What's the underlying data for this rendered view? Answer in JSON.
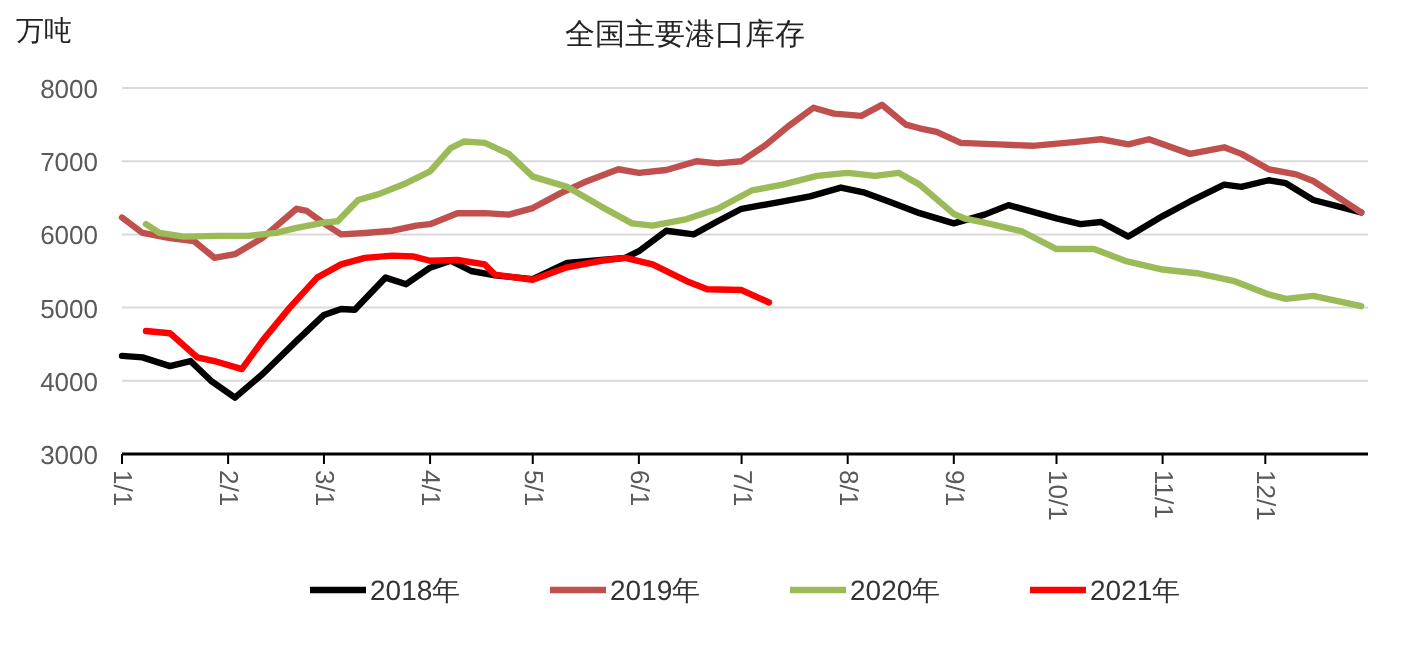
{
  "chart_data": {
    "type": "line",
    "title": "全国主要港口库存",
    "ylabel": "万吨",
    "xlim": [
      "--01-01",
      "--12-31"
    ],
    "xticks": [
      {
        "value": "--01-01",
        "label": "1/1"
      },
      {
        "value": "--02-01",
        "label": "2/1"
      },
      {
        "value": "--03-01",
        "label": "3/1"
      },
      {
        "value": "--04-01",
        "label": "4/1"
      },
      {
        "value": "--05-01",
        "label": "5/1"
      },
      {
        "value": "--06-01",
        "label": "6/1"
      },
      {
        "value": "--07-01",
        "label": "7/1"
      },
      {
        "value": "--08-01",
        "label": "8/1"
      },
      {
        "value": "--09-01",
        "label": "9/1"
      },
      {
        "value": "--10-01",
        "label": "10/1"
      },
      {
        "value": "--11-01",
        "label": "11/1"
      },
      {
        "value": "--12-01",
        "label": "12/1"
      }
    ],
    "ylim": [
      3000,
      8000
    ],
    "yticks": [
      3000,
      4000,
      5000,
      6000,
      7000,
      8000
    ],
    "grid": "y",
    "legend": "bottom",
    "marker": "none",
    "line_style": "solid",
    "series": [
      {
        "name": "2018年",
        "color": "#000000",
        "x": [
          "--01-01",
          "--01-07",
          "--01-15",
          "--01-21",
          "--01-27",
          "--02-03",
          "--02-11",
          "--02-21",
          "--03-01",
          "--03-06",
          "--03-10",
          "--03-19",
          "--03-25",
          "--04-01",
          "--04-07",
          "--04-13",
          "--04-20",
          "--05-01",
          "--05-11",
          "--05-21",
          "--05-28",
          "--06-01",
          "--06-09",
          "--06-17",
          "--06-24",
          "--07-01",
          "--07-12",
          "--07-21",
          "--07-30",
          "--08-06",
          "--08-13",
          "--08-22",
          "--09-01",
          "--09-10",
          "--09-17",
          "--10-01",
          "--10-08",
          "--10-14",
          "--10-22",
          "--11-01",
          "--11-09",
          "--11-19",
          "--11-24",
          "--12-02",
          "--12-07",
          "--12-15",
          "--12-29"
        ],
        "values": [
          4340,
          4320,
          4200,
          4270,
          4000,
          3770,
          4090,
          4545,
          4900,
          4980,
          4970,
          5410,
          5320,
          5545,
          5640,
          5500,
          5440,
          5390,
          5610,
          5650,
          5680,
          5770,
          6050,
          6000,
          6180,
          6350,
          6440,
          6520,
          6640,
          6570,
          6450,
          6290,
          6150,
          6270,
          6400,
          6220,
          6140,
          6170,
          5970,
          6250,
          6450,
          6680,
          6650,
          6740,
          6700,
          6470,
          6300
        ]
      },
      {
        "name": "2019年",
        "color": "#c0504d",
        "x": [
          "--01-01",
          "--01-07",
          "--01-15",
          "--01-22",
          "--01-28",
          "--02-03",
          "--02-11",
          "--02-21",
          "--02-24",
          "--03-01",
          "--03-06",
          "--03-13",
          "--03-21",
          "--03-28",
          "--04-01",
          "--04-09",
          "--04-17",
          "--04-24",
          "--05-01",
          "--05-09",
          "--05-17",
          "--05-26",
          "--06-01",
          "--06-09",
          "--06-18",
          "--06-24",
          "--07-01",
          "--07-08",
          "--07-15",
          "--07-22",
          "--07-28",
          "--08-05",
          "--08-11",
          "--08-18",
          "--08-22",
          "--08-27",
          "--09-03",
          "--09-14",
          "--09-24",
          "--10-06",
          "--10-14",
          "--10-22",
          "--10-28",
          "--11-09",
          "--11-19",
          "--11-24",
          "--12-02",
          "--12-10",
          "--12-15",
          "--12-29"
        ],
        "values": [
          6230,
          6020,
          5950,
          5910,
          5680,
          5730,
          5950,
          6350,
          6320,
          6150,
          6000,
          6020,
          6050,
          6120,
          6140,
          6290,
          6290,
          6270,
          6360,
          6560,
          6730,
          6890,
          6840,
          6880,
          7000,
          6970,
          7000,
          7220,
          7490,
          7730,
          7650,
          7620,
          7770,
          7500,
          7450,
          7400,
          7250,
          7230,
          7210,
          7260,
          7300,
          7230,
          7300,
          7100,
          7190,
          7100,
          6890,
          6820,
          6730,
          6300
        ]
      },
      {
        "name": "2020年",
        "color": "#9bbb59",
        "x": [
          "--01-08",
          "--01-12",
          "--01-19",
          "--01-29",
          "--02-07",
          "--02-15",
          "--02-21",
          "--03-01",
          "--03-05",
          "--03-11",
          "--03-17",
          "--03-25",
          "--04-01",
          "--04-07",
          "--04-11",
          "--04-17",
          "--04-24",
          "--05-01",
          "--05-11",
          "--05-21",
          "--05-30",
          "--06-05",
          "--06-15",
          "--06-24",
          "--07-04",
          "--07-13",
          "--07-23",
          "--08-01",
          "--08-09",
          "--08-16",
          "--08-22",
          "--09-01",
          "--09-04",
          "--09-11",
          "--09-21",
          "--10-01",
          "--10-12",
          "--10-21",
          "--11-01",
          "--11-11",
          "--11-22",
          "--12-02",
          "--12-07",
          "--12-15",
          "--12-29"
        ],
        "values": [
          6140,
          6020,
          5970,
          5980,
          5980,
          6020,
          6090,
          6160,
          6180,
          6470,
          6550,
          6700,
          6860,
          7180,
          7270,
          7250,
          7100,
          6790,
          6650,
          6380,
          6150,
          6120,
          6210,
          6350,
          6600,
          6680,
          6800,
          6840,
          6800,
          6840,
          6680,
          6280,
          6220,
          6150,
          6040,
          5800,
          5800,
          5640,
          5520,
          5470,
          5360,
          5180,
          5120,
          5160,
          5020
        ]
      },
      {
        "name": "2021年",
        "color": "#ff0000",
        "x": [
          "--01-08",
          "--01-15",
          "--01-23",
          "--01-28",
          "--02-05",
          "--02-11",
          "--02-19",
          "--02-27",
          "--03-06",
          "--03-13",
          "--03-21",
          "--03-27",
          "--04-01",
          "--04-09",
          "--04-17",
          "--04-20",
          "--05-01",
          "--05-11",
          "--05-21",
          "--05-28",
          "--06-05",
          "--06-15",
          "--06-21",
          "--07-01",
          "--07-09"
        ],
        "values": [
          4680,
          4650,
          4320,
          4270,
          4160,
          4545,
          5000,
          5410,
          5590,
          5680,
          5710,
          5700,
          5640,
          5650,
          5590,
          5450,
          5380,
          5550,
          5640,
          5680,
          5590,
          5360,
          5250,
          5240,
          5070
        ]
      }
    ]
  }
}
